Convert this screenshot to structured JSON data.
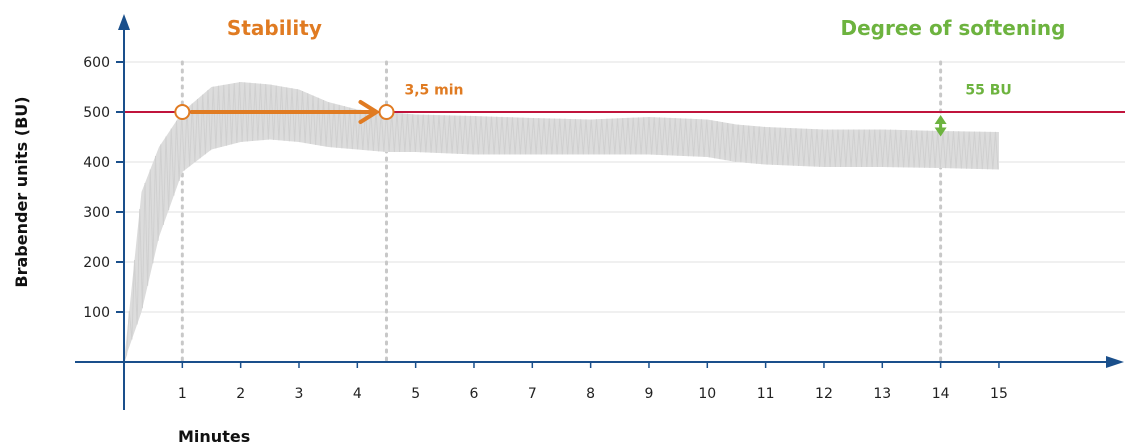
{
  "chart_data": {
    "type": "line",
    "ylabel": "Brabender units (BU)",
    "xlabel": "Minutes",
    "xlim": [
      0,
      15
    ],
    "ylim": [
      0,
      600
    ],
    "x_ticks": [
      1,
      2,
      3,
      4,
      5,
      6,
      7,
      8,
      9,
      10,
      11,
      12,
      13,
      14,
      15
    ],
    "y_ticks": [
      100,
      200,
      300,
      400,
      500,
      600
    ],
    "grid": "horizontal",
    "reference_line": {
      "y": 500,
      "color": "#c0143c"
    },
    "vertical_markers": [
      1,
      4.5,
      14
    ],
    "annotations": {
      "stability": {
        "label": "Stability",
        "from_x": 1,
        "to_x": 4.5,
        "y": 500,
        "color": "#e07b22",
        "value_label": "3,5 min"
      },
      "softening": {
        "label": "Degree of softening",
        "x": 14,
        "y_from": 500,
        "y_to": 445,
        "color": "#6db33f",
        "value_label": "55 BU"
      }
    },
    "band": {
      "color": "#dcdcdc",
      "x": [
        0,
        0.3,
        0.6,
        1,
        1.5,
        2,
        2.5,
        3,
        3.5,
        4,
        4.5,
        5,
        6,
        7,
        8,
        9,
        10,
        10.5,
        11,
        12,
        13,
        14,
        15
      ],
      "upper": [
        0,
        340,
        430,
        500,
        550,
        560,
        555,
        545,
        520,
        505,
        500,
        495,
        492,
        488,
        485,
        490,
        485,
        475,
        470,
        465,
        465,
        462,
        460
      ],
      "lower": [
        0,
        100,
        250,
        380,
        425,
        440,
        445,
        440,
        430,
        425,
        420,
        420,
        415,
        415,
        415,
        415,
        410,
        400,
        395,
        390,
        390,
        388,
        385
      ]
    }
  }
}
